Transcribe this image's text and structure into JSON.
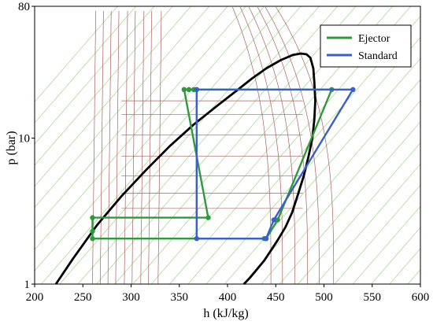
{
  "chart_data": {
    "type": "line",
    "xlabel": "h (kJ/kg)",
    "ylabel": "p (bar)",
    "xlim": [
      200,
      600
    ],
    "ylim": [
      1,
      80
    ],
    "yscale": "log",
    "x_ticks": [
      "200",
      "250",
      "300",
      "350",
      "400",
      "450",
      "500",
      "550",
      "600"
    ],
    "y_ticks": [
      "1",
      "10",
      "80"
    ],
    "grid": false,
    "legend_position": "top-right",
    "colors": {
      "ejector": "#2e9a3c",
      "standard": "#3b5fc8",
      "dome": "#000000",
      "isotherm": "#a86060",
      "isentrope": "#a4d48a"
    },
    "saturation_dome": {
      "x": [
        222,
        240,
        265,
        290,
        315,
        340,
        365,
        390,
        410,
        425,
        440,
        455,
        468,
        476,
        482,
        486,
        489,
        490,
        491,
        490,
        488,
        484,
        479,
        473,
        467,
        460,
        452,
        445,
        438,
        430,
        423,
        417
      ],
      "y": [
        1,
        1.5,
        2.55,
        4.0,
        6.0,
        8.8,
        12.4,
        16.8,
        21.3,
        25.5,
        30.0,
        34.2,
        37.2,
        38.0,
        37.5,
        35.5,
        30.0,
        24.0,
        18.0,
        13.5,
        10.0,
        7.5,
        5.5,
        4.1,
        3.1,
        2.45,
        2.0,
        1.7,
        1.45,
        1.25,
        1.1,
        1
      ]
    },
    "series": [
      {
        "name": "Ejector",
        "x": [
          355,
          508,
          452,
          440,
          438,
          260,
          260,
          260,
          380,
          355,
          360,
          365
        ],
        "y": [
          21.5,
          21.5,
          2.75,
          2.05,
          2.05,
          2.05,
          2.3,
          2.85,
          2.85,
          21.5,
          21.5,
          21.5
        ]
      },
      {
        "name": "Standard",
        "x": [
          368,
          530,
          448,
          440,
          368,
          368
        ],
        "y": [
          21.5,
          21.5,
          2.75,
          2.05,
          2.05,
          21.5
        ]
      }
    ]
  }
}
